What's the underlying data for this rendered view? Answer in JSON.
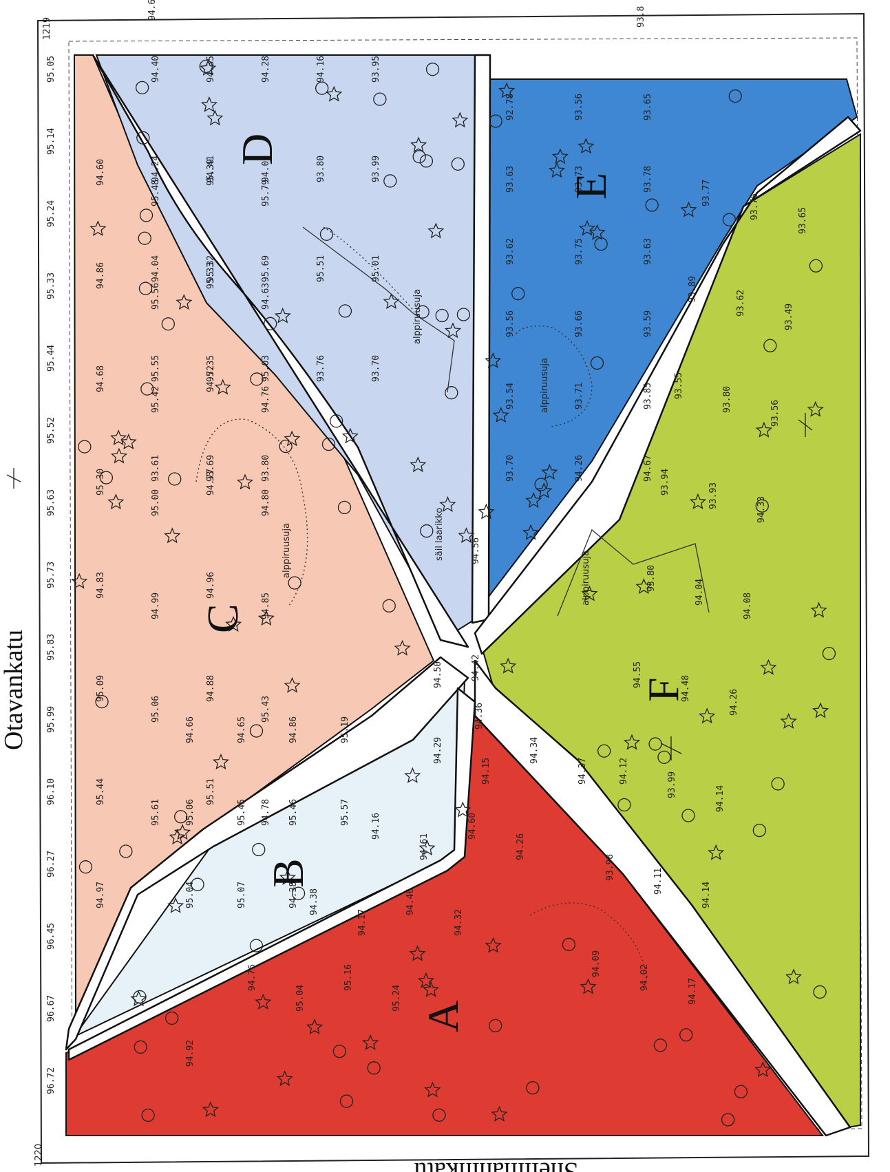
{
  "streets": {
    "left": "Otavankatu",
    "bottom": "Snellmaninkatu"
  },
  "corner_labels": {
    "top_left": "1219",
    "bottom_left": "1220"
  },
  "zones": [
    {
      "id": "A",
      "label": "A",
      "color": "#de3b33"
    },
    {
      "id": "B",
      "label": "B",
      "color": "#e6f1f8"
    },
    {
      "id": "C",
      "label": "C",
      "color": "#f7c9b4"
    },
    {
      "id": "D",
      "label": "D",
      "color": "#c9d6f0"
    },
    {
      "id": "E",
      "label": "E",
      "color": "#3f87d3"
    },
    {
      "id": "F",
      "label": "F",
      "color": "#b9cf46"
    }
  ],
  "path_labels": [
    "alppiruusuja",
    "alppiruusuja",
    "alppiruusuja",
    "alppiruusuja"
  ],
  "feature_labels": {
    "well": "säil laarikko"
  },
  "elevations": {
    "left_edge": [
      "95.05",
      "95.14",
      "95.24",
      "95.33",
      "95.44",
      "95.52",
      "95.63",
      "95.73",
      "95.83",
      "95.99",
      "96.10",
      "96.27",
      "96.45",
      "96.67",
      "96.72"
    ],
    "top_edge": [
      "94.6",
      "93.8"
    ],
    "zone_C": [
      "94.60",
      "95.48",
      "95.39",
      "95.79",
      "94.86",
      "95.56",
      "95.33",
      "94.63",
      "94.68",
      "95.42",
      "94.72",
      "94.76",
      "95.30",
      "95.00",
      "94.77",
      "94.80",
      "94.83",
      "94.99",
      "94.96",
      "94.85",
      "95.09",
      "95.06",
      "94.88",
      "95.43",
      "95.44",
      "95.61",
      "95.51",
      "94.78",
      "94.97"
    ],
    "zone_D": [
      "94.40",
      "94.35",
      "94.28",
      "94.16",
      "93.95",
      "94.24",
      "94.41",
      "94.09",
      "93.80",
      "93.99",
      "94.04",
      "95.32",
      "95.69",
      "95.51",
      "95.01",
      "95.55",
      "95.35",
      "95.03",
      "93.76",
      "93.70",
      "93.61",
      "93.69",
      "93.80"
    ],
    "zone_E": [
      "92.78",
      "93.56",
      "93.65",
      "93.63",
      "93.73",
      "93.78",
      "93.62",
      "93.75",
      "93.63",
      "93.56",
      "93.66",
      "93.59",
      "93.54",
      "93.71",
      "93.85",
      "93.70",
      "94.26",
      "94.67"
    ],
    "zone_F": [
      "93.77",
      "93.76",
      "93.65",
      "93.89",
      "93.62",
      "93.49",
      "93.55",
      "93.80",
      "93.56",
      "93.94",
      "93.93",
      "94.33",
      "93.80",
      "94.04",
      "94.08",
      "94.55",
      "94.48",
      "94.26",
      "94.12",
      "93.99",
      "94.14",
      "93.98",
      "94.11",
      "94.14",
      "94.09",
      "94.02",
      "94.17"
    ],
    "zone_B": [
      "94.66",
      "94.65",
      "94.86",
      "95.19",
      "95.06",
      "95.45",
      "95.46",
      "95.57",
      "95.04",
      "95.07",
      "94.38"
    ],
    "zone_A": [
      "94.29",
      "94.15",
      "94.34",
      "94.37",
      "94.16",
      "94.61",
      "94.60",
      "94.26",
      "94.38",
      "94.17",
      "94.46",
      "94.32",
      "94.76",
      "95.04",
      "95.16",
      "95.24",
      "94.92"
    ],
    "center": [
      "94.50",
      "94.42",
      "94.56",
      "94.36"
    ]
  }
}
